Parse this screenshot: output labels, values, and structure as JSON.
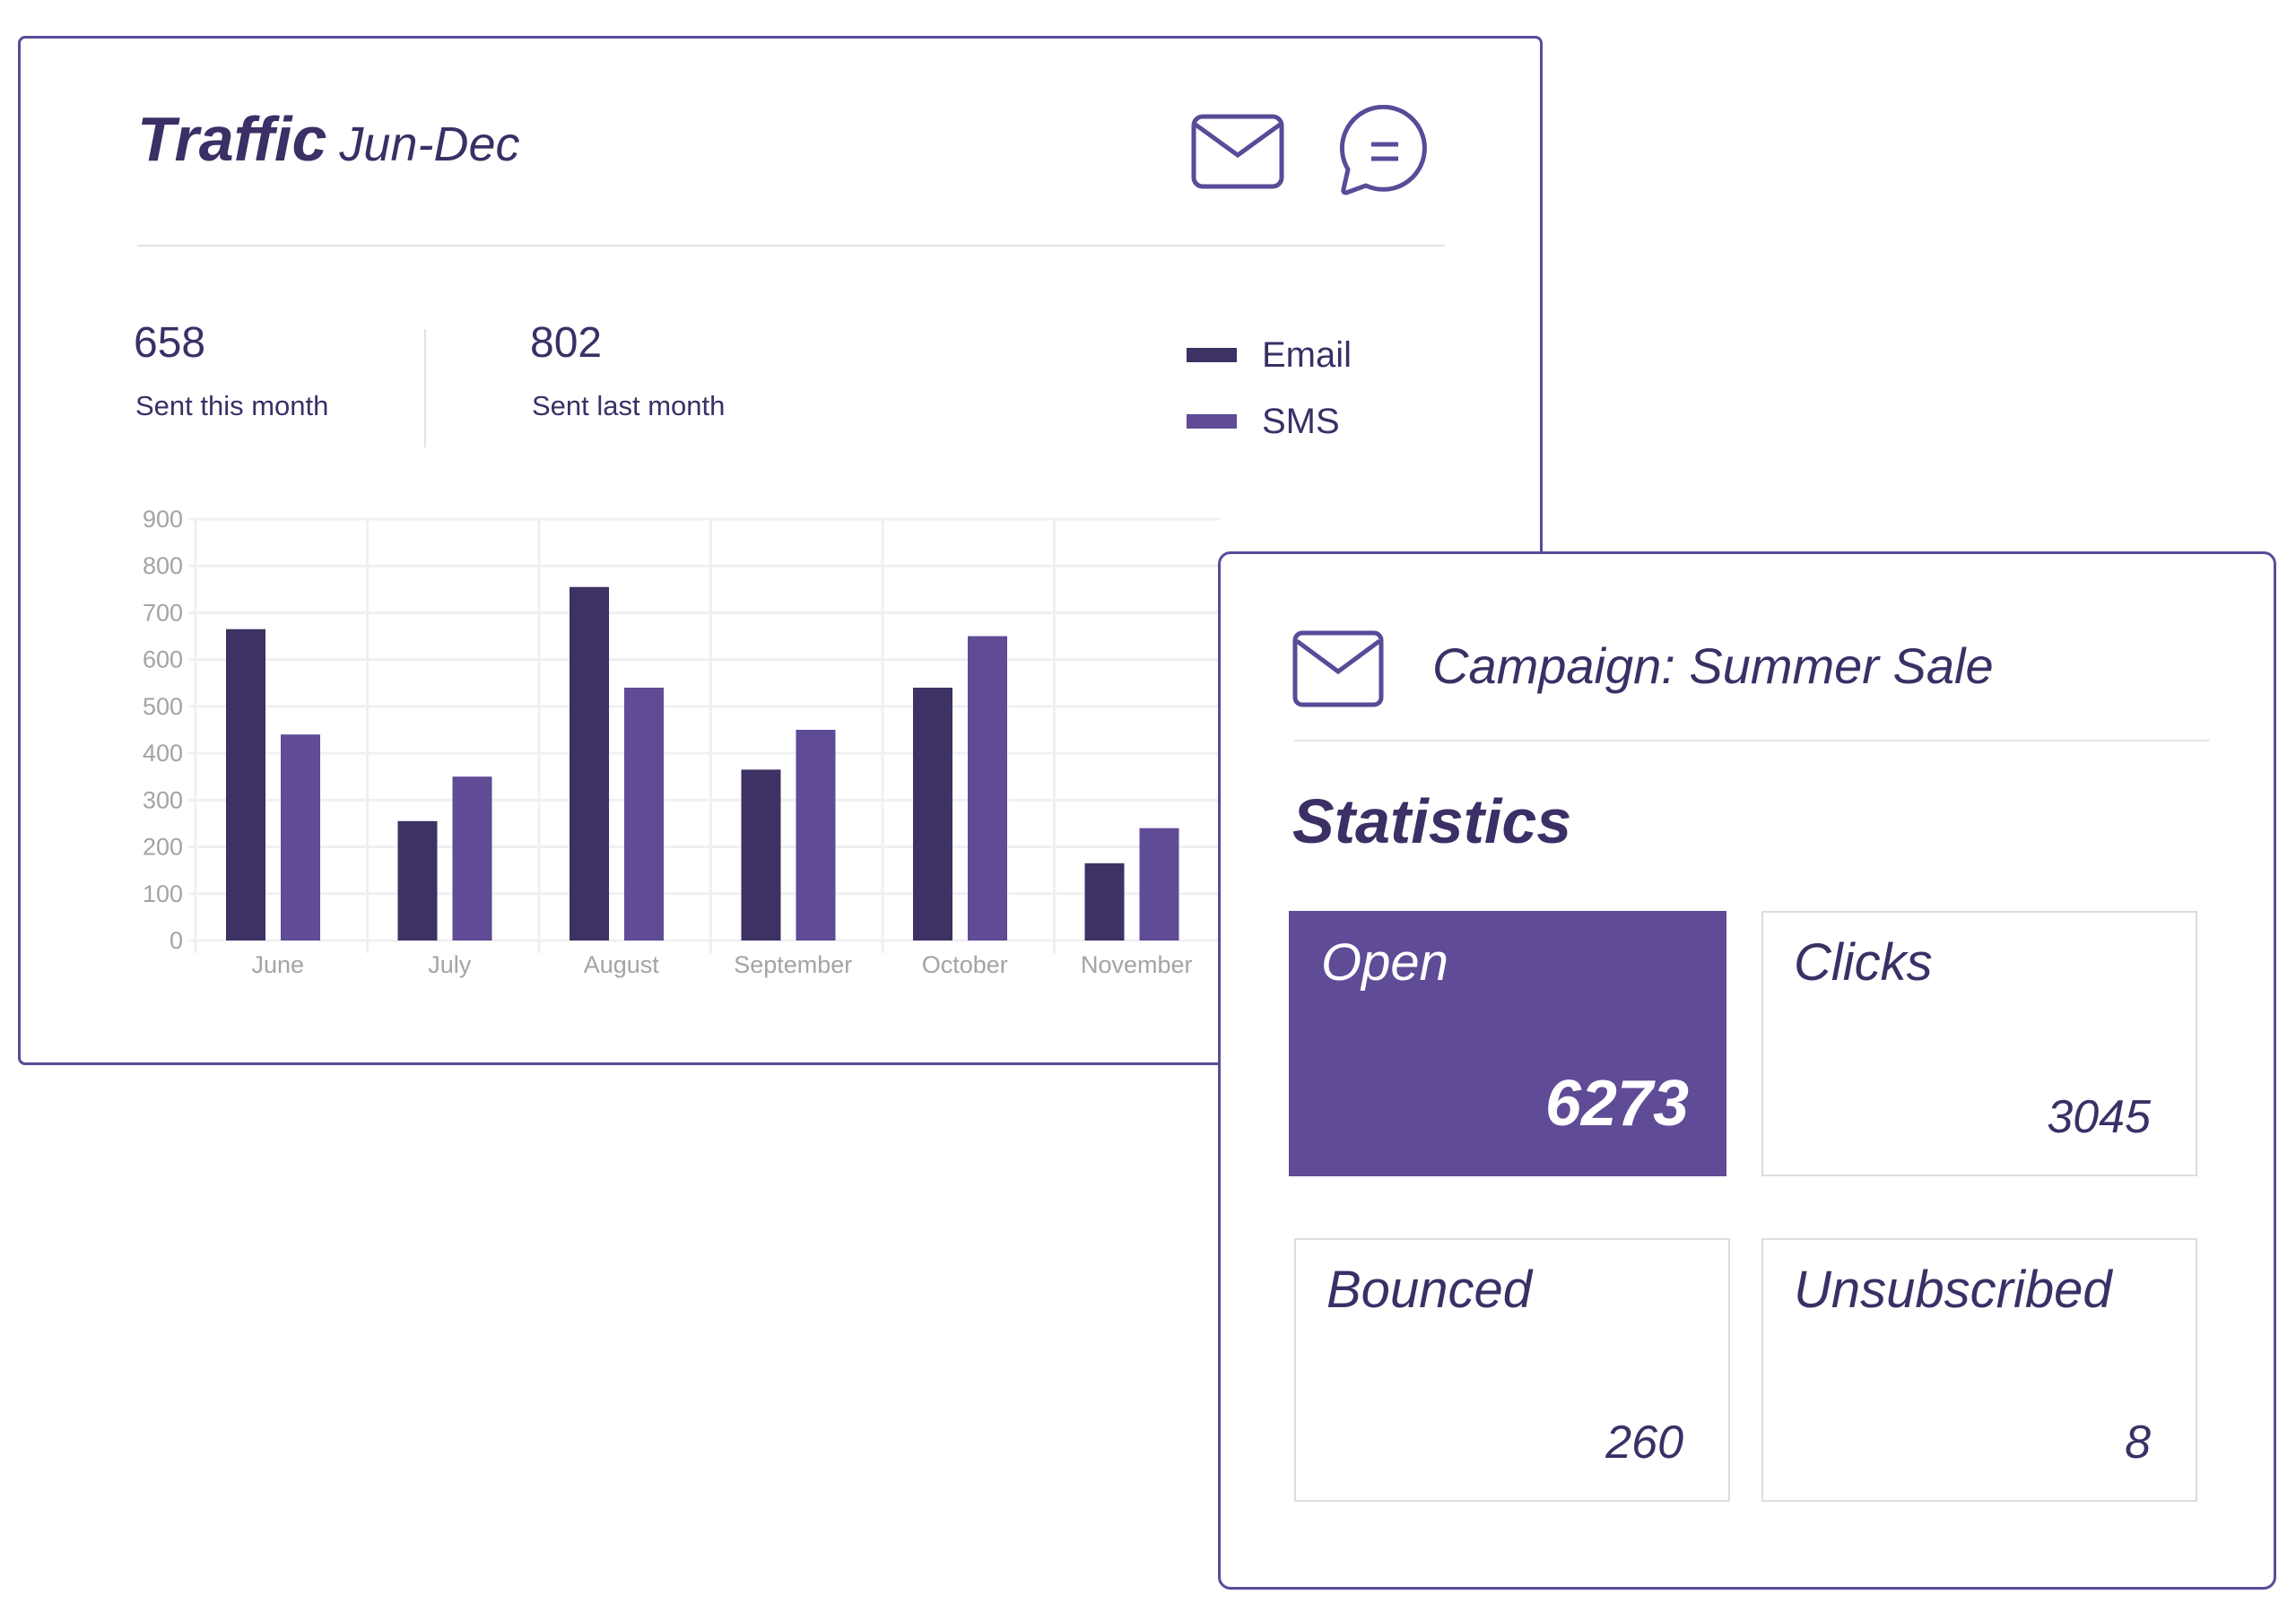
{
  "traffic": {
    "title": "Traffic",
    "range": "Jun-Dec",
    "sent_this_month": "658",
    "sent_this_month_label": "Sent this month",
    "sent_last_month": "802",
    "sent_last_month_label": "Sent last month",
    "icons": [
      "envelope-icon",
      "chat-bubble-icon"
    ]
  },
  "colors": {
    "email": "#3e3164",
    "sms": "#5f4b96",
    "border": "#5a4a98",
    "text": "#3b2f66"
  },
  "chart_data": {
    "type": "bar",
    "categories": [
      "June",
      "July",
      "August",
      "September",
      "October",
      "November"
    ],
    "series": [
      {
        "name": "Email",
        "values": [
          665,
          255,
          755,
          365,
          540,
          165
        ]
      },
      {
        "name": "SMS",
        "values": [
          440,
          350,
          540,
          450,
          650,
          240
        ]
      }
    ],
    "yticks": [
      0,
      100,
      200,
      300,
      400,
      500,
      600,
      700,
      800,
      900
    ],
    "ylim": [
      0,
      900
    ],
    "grid": true,
    "legend": "top-right",
    "title": "",
    "xlabel": "",
    "ylabel": ""
  },
  "campaign": {
    "title": "Campaign: Summer Sale",
    "section": "Statistics",
    "tiles": [
      {
        "label": "Open",
        "value": "6273"
      },
      {
        "label": "Clicks",
        "value": "3045"
      },
      {
        "label": "Bounced",
        "value": "260"
      },
      {
        "label": "Unsubscribed",
        "value": "8"
      }
    ]
  }
}
